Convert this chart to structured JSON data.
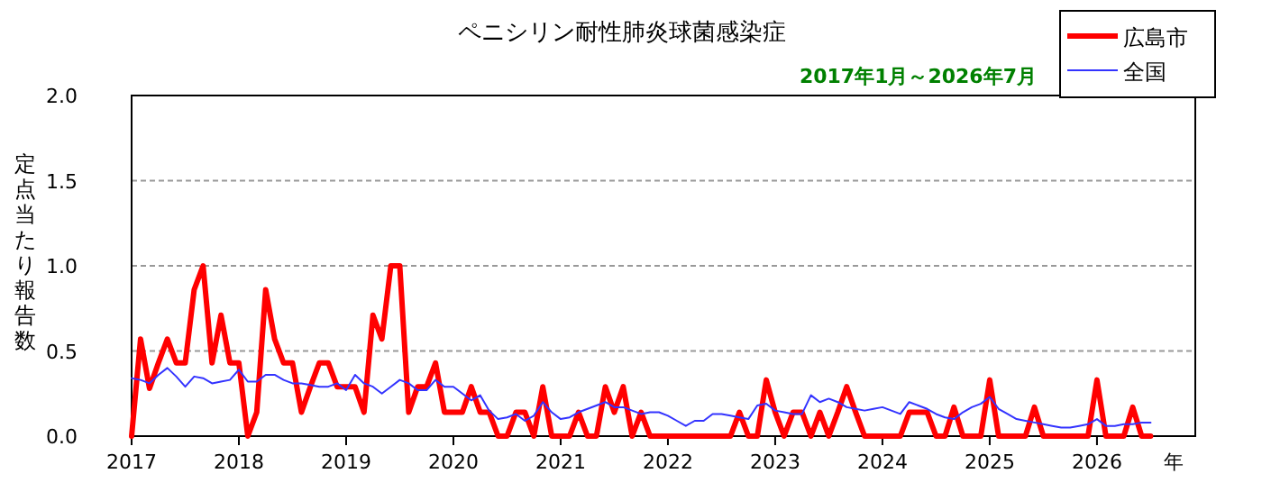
{
  "chart_data": {
    "type": "line",
    "title": "ペニシリン耐性肺炎球菌感染症",
    "subtitle": "2017年1月～2026年7月",
    "xlabel": "年",
    "ylabel": "定点当たり報告数",
    "x": [
      "2017-01",
      "2017-02",
      "2017-03",
      "2017-04",
      "2017-05",
      "2017-06",
      "2017-07",
      "2017-08",
      "2017-09",
      "2017-10",
      "2017-11",
      "2017-12",
      "2018-01",
      "2018-02",
      "2018-03",
      "2018-04",
      "2018-05",
      "2018-06",
      "2018-07",
      "2018-08",
      "2018-09",
      "2018-10",
      "2018-11",
      "2018-12",
      "2019-01",
      "2019-02",
      "2019-03",
      "2019-04",
      "2019-05",
      "2019-06",
      "2019-07",
      "2019-08",
      "2019-09",
      "2019-10",
      "2019-11",
      "2019-12",
      "2020-01",
      "2020-02",
      "2020-03",
      "2020-04",
      "2020-05",
      "2020-06",
      "2020-07",
      "2020-08",
      "2020-09",
      "2020-10",
      "2020-11",
      "2020-12",
      "2021-01",
      "2021-02",
      "2021-03",
      "2021-04",
      "2021-05",
      "2021-06",
      "2021-07",
      "2021-08",
      "2021-09",
      "2021-10",
      "2021-11",
      "2021-12",
      "2022-01",
      "2022-02",
      "2022-03",
      "2022-04",
      "2022-05",
      "2022-06",
      "2022-07",
      "2022-08",
      "2022-09",
      "2022-10",
      "2022-11",
      "2022-12",
      "2023-01",
      "2023-02",
      "2023-03",
      "2023-04",
      "2023-05",
      "2023-06",
      "2023-07",
      "2023-08",
      "2023-09",
      "2023-10",
      "2023-11",
      "2023-12",
      "2024-01",
      "2024-02",
      "2024-03",
      "2024-04",
      "2024-05",
      "2024-06",
      "2024-07",
      "2024-08",
      "2024-09",
      "2024-10",
      "2024-11",
      "2024-12",
      "2025-01",
      "2025-02",
      "2025-03",
      "2025-04",
      "2025-05",
      "2025-06",
      "2025-07",
      "2025-08",
      "2025-09",
      "2025-10",
      "2025-11",
      "2025-12",
      "2026-01",
      "2026-02",
      "2026-03",
      "2026-04",
      "2026-05",
      "2026-06",
      "2026-07"
    ],
    "series": [
      {
        "name": "広島市",
        "color": "#ff0000",
        "values": [
          0,
          0.57,
          0.28,
          0.43,
          0.57,
          0.43,
          0.43,
          0.86,
          1.0,
          0.43,
          0.71,
          0.43,
          0.43,
          0,
          0.14,
          0.86,
          0.57,
          0.43,
          0.43,
          0.14,
          0.29,
          0.43,
          0.43,
          0.29,
          0.29,
          0.29,
          0.14,
          0.71,
          0.57,
          1.0,
          1.0,
          0.14,
          0.29,
          0.29,
          0.43,
          0.14,
          0.14,
          0.14,
          0.29,
          0.14,
          0.14,
          0,
          0,
          0.14,
          0.14,
          0,
          0.29,
          0,
          0,
          0,
          0.14,
          0,
          0,
          0.29,
          0.14,
          0.29,
          0,
          0.14,
          0,
          0,
          0,
          0,
          0,
          0,
          0,
          0,
          0,
          0,
          0.14,
          0,
          0,
          0.33,
          0.14,
          0,
          0.14,
          0.14,
          0,
          0.14,
          0,
          0.14,
          0.29,
          0.14,
          0,
          0,
          0,
          0,
          0,
          0.14,
          0.14,
          0.14,
          0,
          0,
          0.17,
          0,
          0,
          0,
          0.33,
          0,
          0,
          0,
          0,
          0.17,
          0,
          0,
          0,
          0,
          0,
          0,
          0.33,
          0,
          0,
          0,
          0.17,
          0,
          0
        ]
      },
      {
        "name": "全国",
        "color": "#3333ff",
        "values": [
          0.34,
          0.33,
          0.31,
          0.36,
          0.4,
          0.35,
          0.29,
          0.35,
          0.34,
          0.31,
          0.32,
          0.33,
          0.39,
          0.32,
          0.32,
          0.36,
          0.36,
          0.33,
          0.31,
          0.31,
          0.3,
          0.29,
          0.29,
          0.31,
          0.27,
          0.36,
          0.31,
          0.29,
          0.25,
          0.29,
          0.33,
          0.31,
          0.27,
          0.27,
          0.33,
          0.29,
          0.29,
          0.25,
          0.21,
          0.24,
          0.15,
          0.1,
          0.11,
          0.13,
          0.09,
          0.12,
          0.2,
          0.14,
          0.1,
          0.11,
          0.14,
          0.16,
          0.18,
          0.2,
          0.17,
          0.17,
          0.15,
          0.13,
          0.14,
          0.14,
          0.12,
          0.09,
          0.06,
          0.09,
          0.09,
          0.13,
          0.13,
          0.12,
          0.11,
          0.1,
          0.18,
          0.19,
          0.15,
          0.14,
          0.13,
          0.13,
          0.24,
          0.2,
          0.22,
          0.2,
          0.17,
          0.16,
          0.15,
          0.16,
          0.17,
          0.15,
          0.13,
          0.2,
          0.18,
          0.16,
          0.13,
          0.11,
          0.1,
          0.14,
          0.17,
          0.19,
          0.23,
          0.16,
          0.13,
          0.1,
          0.09,
          0.08,
          0.07,
          0.06,
          0.05,
          0.05,
          0.06,
          0.07,
          0.1,
          0.06,
          0.06,
          0.07,
          0.07,
          0.08,
          0.08
        ]
      }
    ],
    "xlim": [
      "2017-01",
      "2026-12"
    ],
    "xticks": [
      "2017",
      "2018",
      "2019",
      "2020",
      "2021",
      "2022",
      "2023",
      "2024",
      "2025",
      "2026"
    ],
    "ylim": [
      0,
      2.0
    ],
    "yticks": [
      {
        "value": 0,
        "label": "0.0"
      },
      {
        "value": 0.5,
        "label": "0.5"
      },
      {
        "value": 1.0,
        "label": "1.0"
      },
      {
        "value": 1.5,
        "label": "1.5"
      },
      {
        "value": 2.0,
        "label": "2.0"
      }
    ],
    "grid": "y",
    "legend": "top right"
  }
}
